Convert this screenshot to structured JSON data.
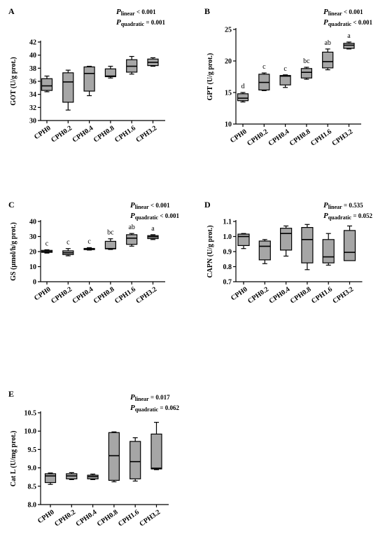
{
  "chart_data": [
    {
      "type": "box",
      "panel_label": "A",
      "ylabel": "GOT (U/g prot.)",
      "categories": [
        "CPH0",
        "CPH0.2",
        "CPH0.4",
        "CPH0.8",
        "CPH1.6",
        "CPH3.2"
      ],
      "ylim": [
        30,
        42
      ],
      "yticks": [
        30,
        32,
        34,
        36,
        38,
        40,
        42
      ],
      "boxes": [
        {
          "min": 34.4,
          "q1": 34.6,
          "median": 35.3,
          "q3": 36.4,
          "max": 36.8
        },
        {
          "min": 31.6,
          "q1": 32.8,
          "median": 35.9,
          "q3": 37.3,
          "max": 37.7
        },
        {
          "min": 33.8,
          "q1": 34.5,
          "median": 37.2,
          "q3": 38.2,
          "max": 38.3
        },
        {
          "min": 36.5,
          "q1": 36.7,
          "median": 36.8,
          "q3": 37.9,
          "max": 38.3
        },
        {
          "min": 37.1,
          "q1": 37.4,
          "median": 38.3,
          "q3": 39.3,
          "max": 39.8
        },
        {
          "min": 38.3,
          "q1": 38.4,
          "median": 38.9,
          "q3": 39.4,
          "max": 39.6
        }
      ],
      "letters": [],
      "p_linear": "< 0.001",
      "p_quadratic": "= 0.001"
    },
    {
      "type": "box",
      "panel_label": "B",
      "ylabel": "GPT (U/g prot.)",
      "categories": [
        "CPH0",
        "CPH0.2",
        "CPH0.4",
        "CPH0.8",
        "CPH1.6",
        "CPH3.2"
      ],
      "ylim": [
        10,
        25
      ],
      "yticks": [
        10,
        15,
        20,
        25
      ],
      "boxes": [
        {
          "min": 13.5,
          "q1": 13.7,
          "median": 14.1,
          "q3": 14.8,
          "max": 15.0
        },
        {
          "min": 15.3,
          "q1": 15.4,
          "median": 16.6,
          "q3": 17.9,
          "max": 18.1
        },
        {
          "min": 15.8,
          "q1": 16.2,
          "median": 17.6,
          "q3": 17.7,
          "max": 17.8
        },
        {
          "min": 17.1,
          "q1": 17.3,
          "median": 18.2,
          "q3": 18.8,
          "max": 19.0
        },
        {
          "min": 18.6,
          "q1": 18.9,
          "median": 19.9,
          "q3": 21.4,
          "max": 21.9
        },
        {
          "min": 21.9,
          "q1": 22.0,
          "median": 22.5,
          "q3": 22.8,
          "max": 23.0
        }
      ],
      "letters": [
        "d",
        "c",
        "c",
        "bc",
        "ab",
        "a"
      ],
      "p_linear": "< 0.001",
      "p_quadratic": "< 0.001"
    },
    {
      "type": "box",
      "panel_label": "C",
      "ylabel": "GS (μmol/h/g prot.)",
      "categories": [
        "CPH0",
        "CPH0.2",
        "CPH0.4",
        "CPH0.8",
        "CPH1.6",
        "CPH3.2"
      ],
      "ylim": [
        0,
        40
      ],
      "yticks": [
        0,
        10,
        20,
        30,
        40
      ],
      "boxes": [
        {
          "min": 19.0,
          "q1": 19.5,
          "median": 20.0,
          "q3": 20.8,
          "max": 21.2
        },
        {
          "min": 17.2,
          "q1": 18.0,
          "median": 19.2,
          "q3": 20.5,
          "max": 22.0
        },
        {
          "min": 21.0,
          "q1": 21.3,
          "median": 21.9,
          "q3": 22.1,
          "max": 22.6
        },
        {
          "min": 21.4,
          "q1": 21.8,
          "median": 22.0,
          "q3": 26.8,
          "max": 28.5
        },
        {
          "min": 23.6,
          "q1": 24.8,
          "median": 28.9,
          "q3": 31.2,
          "max": 32.0
        },
        {
          "min": 28.0,
          "q1": 28.6,
          "median": 29.8,
          "q3": 30.6,
          "max": 31.2
        }
      ],
      "letters": [
        "c",
        "c",
        "c",
        "bc",
        "ab",
        "a"
      ],
      "p_linear": "< 0.001",
      "p_quadratic": "< 0.001"
    },
    {
      "type": "box",
      "panel_label": "D",
      "ylabel": "CAPN (U/g prot.)",
      "categories": [
        "CPH0",
        "CPH0.2",
        "CPH0.4",
        "CPH0.8",
        "CPH1.6",
        "CPH3.2"
      ],
      "ylim": [
        0.7,
        1.1
      ],
      "yticks": [
        0.7,
        0.8,
        0.9,
        1.0,
        1.1
      ],
      "boxes": [
        {
          "min": 0.92,
          "q1": 0.94,
          "median": 1.0,
          "q3": 1.016,
          "max": 1.02
        },
        {
          "min": 0.82,
          "q1": 0.845,
          "median": 0.935,
          "q3": 0.97,
          "max": 0.98
        },
        {
          "min": 0.87,
          "q1": 0.91,
          "median": 1.02,
          "q3": 1.055,
          "max": 1.07
        },
        {
          "min": 0.78,
          "q1": 0.825,
          "median": 0.98,
          "q3": 1.06,
          "max": 1.08
        },
        {
          "min": 0.81,
          "q1": 0.825,
          "median": 0.865,
          "q3": 0.98,
          "max": 1.02
        },
        {
          "min": 0.84,
          "q1": 0.84,
          "median": 0.895,
          "q3": 1.04,
          "max": 1.07
        }
      ],
      "letters": [],
      "p_linear": "= 0.535",
      "p_quadratic": "= 0.052"
    },
    {
      "type": "box",
      "panel_label": "E",
      "ylabel": "Cat L (U/mg prot.)",
      "categories": [
        "CPH0",
        "CPH0.2",
        "CPH0.4",
        "CPH0.8",
        "CPH1.6",
        "CPH3.2"
      ],
      "ylim": [
        8.0,
        10.5
      ],
      "yticks": [
        8.0,
        8.5,
        9.0,
        9.5,
        10.0,
        10.5
      ],
      "boxes": [
        {
          "min": 8.55,
          "q1": 8.6,
          "median": 8.78,
          "q3": 8.84,
          "max": 8.86
        },
        {
          "min": 8.68,
          "q1": 8.7,
          "median": 8.78,
          "q3": 8.84,
          "max": 8.87
        },
        {
          "min": 8.68,
          "q1": 8.7,
          "median": 8.76,
          "q3": 8.8,
          "max": 8.83
        },
        {
          "min": 8.62,
          "q1": 8.66,
          "median": 9.33,
          "q3": 9.96,
          "max": 9.98
        },
        {
          "min": 8.64,
          "q1": 8.7,
          "median": 9.17,
          "q3": 9.72,
          "max": 9.82
        },
        {
          "min": 8.95,
          "q1": 8.97,
          "median": 8.99,
          "q3": 9.92,
          "max": 10.24
        }
      ],
      "letters": [],
      "p_linear": "= 0.017",
      "p_quadratic": "= 0.062"
    }
  ]
}
